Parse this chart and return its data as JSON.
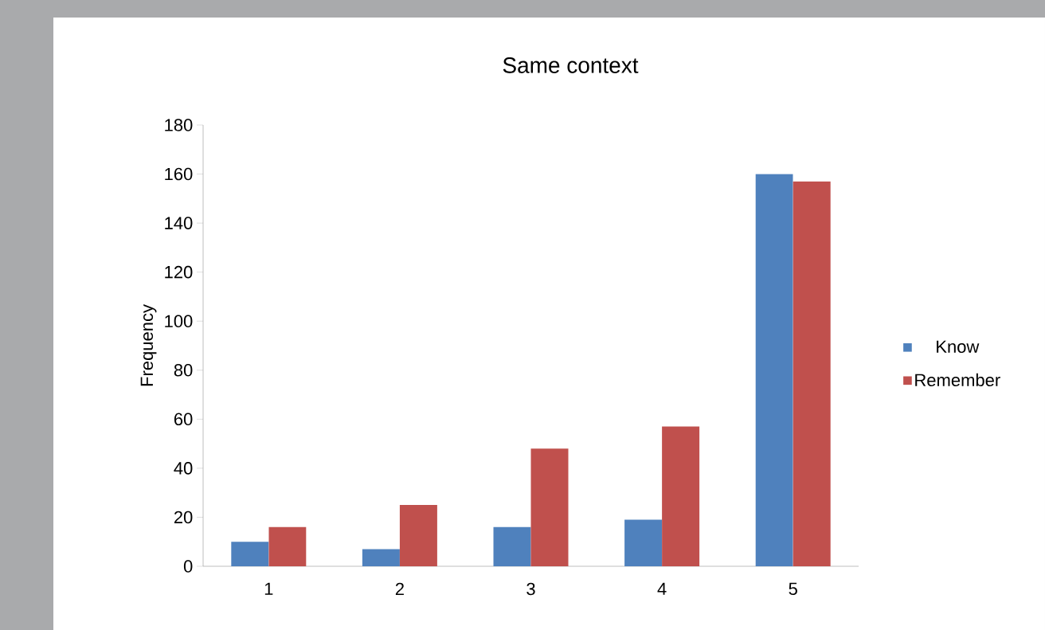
{
  "chart_data": {
    "type": "bar",
    "title": "Same context",
    "ylabel": "Frequency",
    "categories": [
      "1",
      "2",
      "3",
      "4",
      "5"
    ],
    "series": [
      {
        "name": "Know",
        "color": "#4f81bd",
        "values": [
          10,
          7,
          16,
          19,
          160
        ]
      },
      {
        "name": "Remember",
        "color": "#c0504d",
        "values": [
          16,
          25,
          48,
          57,
          157
        ]
      }
    ],
    "ylim": [
      0,
      180
    ],
    "yticks": [
      0,
      20,
      40,
      60,
      80,
      100,
      120,
      140,
      160,
      180
    ],
    "legend": "right"
  }
}
